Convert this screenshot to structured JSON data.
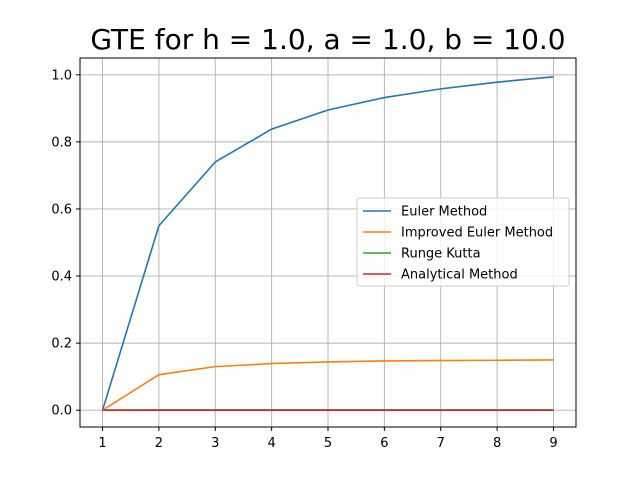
{
  "chart_data": {
    "type": "line",
    "title": "GTE for h = 1.0, a = 1.0, b = 10.0",
    "xlabel": "",
    "ylabel": "",
    "x": [
      1,
      2,
      3,
      4,
      5,
      6,
      7,
      8,
      9
    ],
    "xlim": [
      0.6,
      9.4
    ],
    "ylim": [
      -0.05,
      1.05
    ],
    "xticks": [
      1,
      2,
      3,
      4,
      5,
      6,
      7,
      8,
      9
    ],
    "yticks": [
      0.0,
      0.2,
      0.4,
      0.6,
      0.8,
      1.0
    ],
    "ytick_labels": [
      "0.0",
      "0.2",
      "0.4",
      "0.6",
      "0.8",
      "1.0"
    ],
    "grid": true,
    "legend_position": "center-right",
    "series": [
      {
        "name": "Euler Method",
        "color": "#1f77b4",
        "values": [
          0.0,
          0.55,
          0.74,
          0.838,
          0.895,
          0.932,
          0.958,
          0.978,
          0.994
        ]
      },
      {
        "name": "Improved Euler Method",
        "color": "#ff7f0e",
        "values": [
          0.0,
          0.106,
          0.13,
          0.139,
          0.144,
          0.147,
          0.148,
          0.149,
          0.15
        ]
      },
      {
        "name": "Runge Kutta",
        "color": "#2ca02c",
        "values": [
          0.0,
          0.001,
          0.001,
          0.001,
          0.001,
          0.001,
          0.001,
          0.001,
          0.001
        ]
      },
      {
        "name": "Analytical Method",
        "color": "#d62728",
        "values": [
          0.0,
          0.0,
          0.0,
          0.0,
          0.0,
          0.0,
          0.0,
          0.0,
          0.0
        ]
      }
    ]
  }
}
